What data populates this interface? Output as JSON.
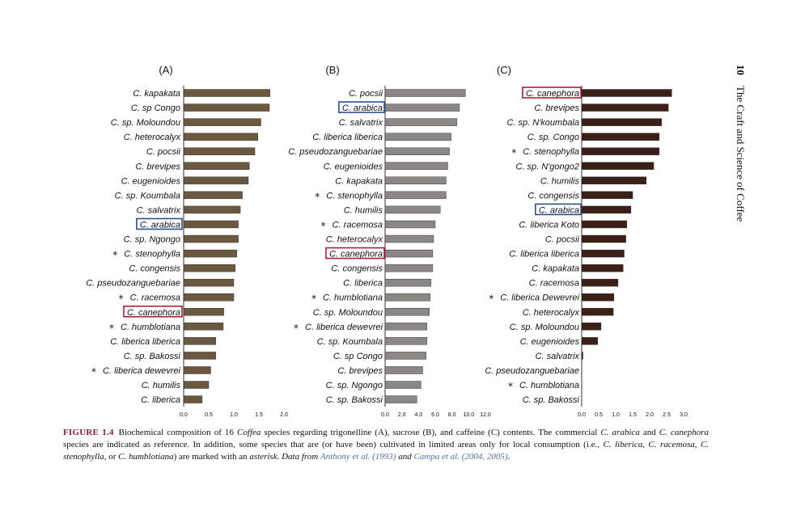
{
  "colors": {
    "bar_A": "#6b5840",
    "bar_B": "#8c8787",
    "bar_C": "#3b2017",
    "axis": "#333333",
    "box_arabica": "#2e4f8f",
    "box_canephora": "#b01c3a"
  },
  "side": {
    "page": "10",
    "title": "The Craft and Science of Coffee"
  },
  "caption": {
    "label": "FIGURE 1.4",
    "text_parts": [
      {
        "t": "Biochemical composition of 16 ",
        "s": "n"
      },
      {
        "t": "Coffea",
        "s": "i"
      },
      {
        "t": " species regarding trigonelline (A), sucrose (B), and caffeine (C) contents. The commercial ",
        "s": "n"
      },
      {
        "t": "C. arabica",
        "s": "i"
      },
      {
        "t": " and ",
        "s": "n"
      },
      {
        "t": "C. canephora",
        "s": "i"
      },
      {
        "t": " species are indicated as reference. In addition, some species that are (or have been) cultivated in limited areas only for local consumption (i.e., ",
        "s": "n"
      },
      {
        "t": "C. liberica",
        "s": "i"
      },
      {
        "t": ", ",
        "s": "n"
      },
      {
        "t": "C. racemosa",
        "s": "i"
      },
      {
        "t": ", ",
        "s": "n"
      },
      {
        "t": "C. stenophylla",
        "s": "i"
      },
      {
        "t": ", or ",
        "s": "n"
      },
      {
        "t": "C. humblotiana",
        "s": "i"
      },
      {
        "t": ") are marked with an ",
        "s": "n"
      },
      {
        "t": "asterisk",
        "s": "i"
      },
      {
        "t": ". ",
        "s": "n"
      },
      {
        "t": "Data from",
        "s": "i"
      },
      {
        "t": " ",
        "s": "n"
      },
      {
        "t": "Anthony et al. (1993)",
        "s": "ref"
      },
      {
        "t": " ",
        "s": "n"
      },
      {
        "t": "and",
        "s": "i"
      },
      {
        "t": " ",
        "s": "n"
      },
      {
        "t": "Campa et al. (2004, 2005)",
        "s": "ref"
      },
      {
        "t": ".",
        "s": "n"
      }
    ]
  },
  "chart_data": [
    {
      "type": "bar",
      "orientation": "horizontal",
      "panel": "(A)",
      "xlim": [
        0,
        2.0
      ],
      "ticks": [
        "0.0",
        "0.5",
        "1.0",
        "1.5",
        "2.0"
      ],
      "tick_values": [
        0,
        0.5,
        1.0,
        1.5,
        2.0
      ],
      "categories": [
        "C. kapakata",
        "C. sp Congo",
        "C. sp. Moloundou",
        "C. heterocalyx",
        "C. pocsii",
        "C. brevipes",
        "C. eugenioides",
        "C. sp. Koumbala",
        "C. salvatrix",
        "C. arabica",
        "C. sp. Ngongo",
        "C. stenophylla",
        "C. congensis",
        "C. pseudozanguebariae",
        "C. racemosa",
        "C. canephora",
        "C. humblotiana",
        "C. liberica liberica",
        "C. sp. Bakossi",
        "C. liberica dewevrei",
        "C. humilis",
        "C. liberica"
      ],
      "values": [
        1.72,
        1.71,
        1.54,
        1.48,
        1.42,
        1.31,
        1.29,
        1.17,
        1.13,
        1.09,
        1.09,
        1.06,
        1.03,
        1.0,
        1.0,
        0.8,
        0.79,
        0.64,
        0.64,
        0.54,
        0.5,
        0.37
      ],
      "asterisk": [
        false,
        false,
        false,
        false,
        false,
        false,
        false,
        false,
        false,
        false,
        false,
        true,
        false,
        false,
        true,
        false,
        true,
        false,
        false,
        true,
        false,
        false
      ],
      "boxed": {
        "C. arabica": "arabica",
        "C. canephora": "canephora"
      }
    },
    {
      "type": "bar",
      "orientation": "horizontal",
      "panel": "(B)",
      "xlim": [
        0,
        12.0
      ],
      "ticks": [
        "0.0",
        "2.0",
        "4.0",
        "6.0",
        "8.0",
        "10.0",
        "12.0"
      ],
      "tick_values": [
        0,
        2,
        4,
        6,
        8,
        10,
        12
      ],
      "categories": [
        "C. pocsii",
        "C. arabica",
        "C. salvatrix",
        "C. liberica liberica",
        "C. pseudozanguebariae",
        "C. eugenioides",
        "C. kapakata",
        "C. stenophylla",
        "C. humilis",
        "C. racemosa",
        "C. heterocalyx",
        "C. canephora",
        "C. congensis",
        "C. liberica",
        "C. humblotiana",
        "C. sp. Moloundou",
        "C. liberica dewevrei",
        "C. sp. Koumbala",
        "C. sp Congo",
        "C. brevipes",
        "C. sp. Ngongo",
        "C. sp. Bakossi"
      ],
      "values": [
        9.6,
        8.9,
        8.6,
        7.9,
        7.7,
        7.5,
        7.3,
        7.3,
        6.6,
        6.0,
        5.8,
        5.7,
        5.7,
        5.5,
        5.4,
        5.3,
        5.0,
        5.0,
        4.9,
        4.5,
        4.3,
        3.8
      ],
      "asterisk": [
        false,
        false,
        false,
        false,
        false,
        false,
        false,
        true,
        false,
        true,
        false,
        false,
        false,
        false,
        true,
        false,
        true,
        false,
        false,
        false,
        false,
        false
      ],
      "boxed": {
        "C. arabica": "arabica",
        "C. canephora": "canephora"
      }
    },
    {
      "type": "bar",
      "orientation": "horizontal",
      "panel": "(C)",
      "xlim": [
        0,
        3.0
      ],
      "ticks": [
        "0.0",
        "0.5",
        "1.0",
        "1.5",
        "2.0",
        "2.5",
        "3.0"
      ],
      "tick_values": [
        0,
        0.5,
        1.0,
        1.5,
        2.0,
        2.5,
        3.0
      ],
      "categories": [
        "C. canephora",
        "C. brevipes",
        "C. sp. N'koumbala",
        "C. sp. Congo",
        "C. stenophylla",
        "C. sp. N'gongo2",
        "C. humilis",
        "C. congensis",
        "C. arabica",
        "C. liberica Koto",
        "C. pocsii",
        "C. liberica liberica",
        "C. kapakata",
        "C. racemosa",
        "C. liberica Dewevrei",
        "C. heterocalyx",
        "C. sp. Moloundou",
        "C. eugenioides",
        "C. salvatrix",
        "C. pseudozanguebariae",
        "C. humblotiana",
        "C. sp. Bakossi"
      ],
      "values": [
        2.65,
        2.55,
        2.35,
        2.28,
        2.28,
        2.12,
        1.9,
        1.5,
        1.45,
        1.33,
        1.3,
        1.25,
        1.22,
        1.07,
        0.95,
        0.93,
        0.57,
        0.47,
        0.03,
        0.0,
        0.0,
        0.0
      ],
      "asterisk": [
        false,
        false,
        false,
        false,
        true,
        false,
        false,
        false,
        false,
        false,
        false,
        false,
        false,
        false,
        true,
        false,
        false,
        false,
        false,
        false,
        true,
        false
      ],
      "boxed": {
        "C. canephora": "canephora",
        "C. arabica": "arabica"
      }
    }
  ]
}
